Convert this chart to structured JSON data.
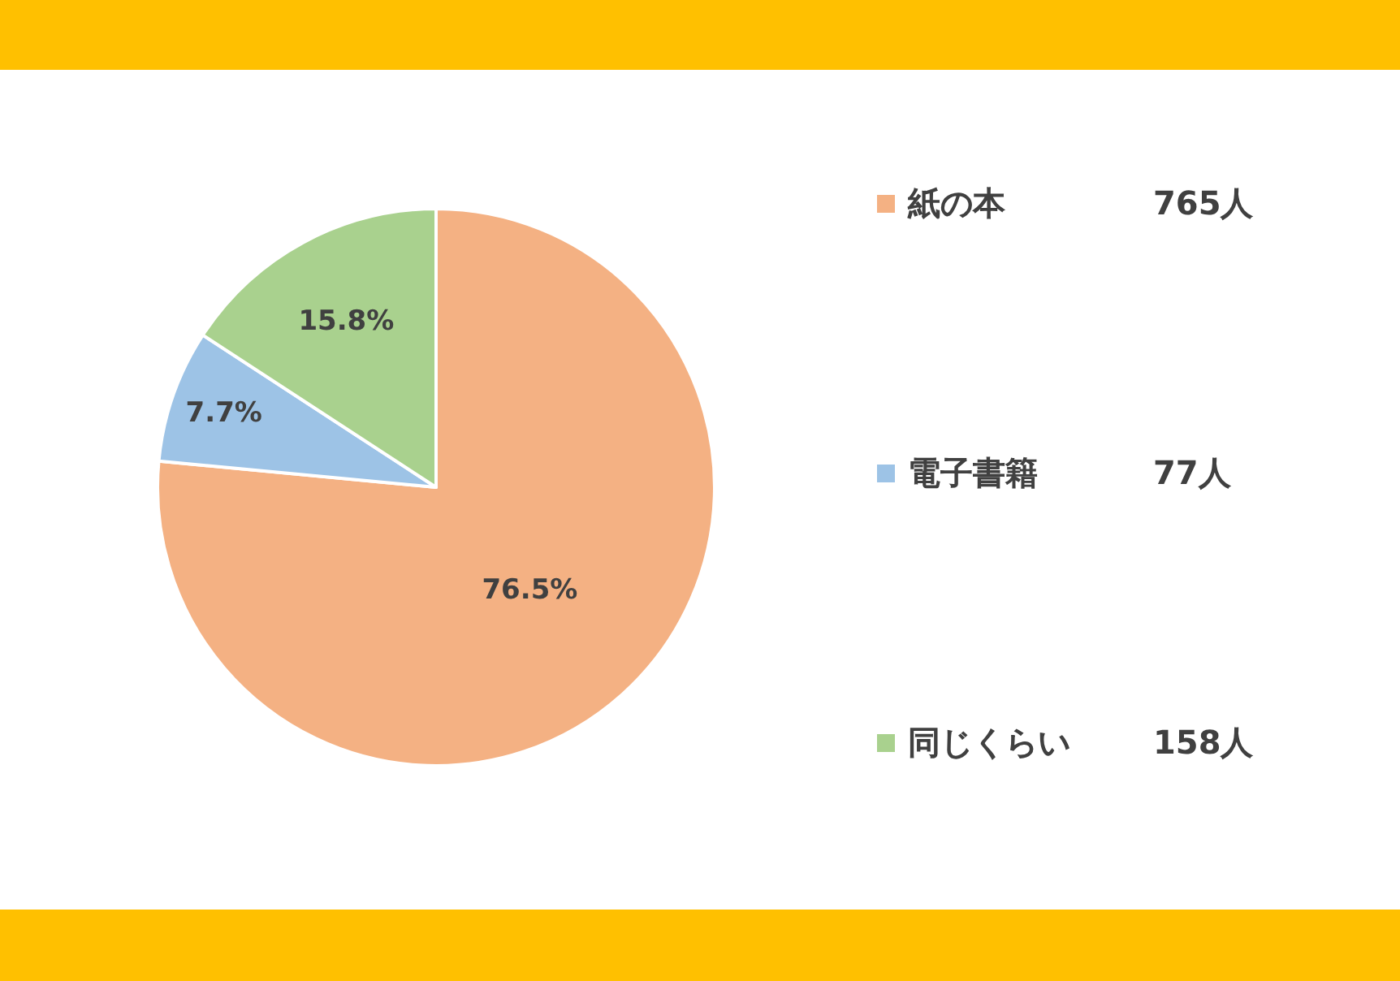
{
  "chart_data": {
    "type": "pie",
    "categories": [
      "紙の本",
      "電子書籍",
      "同じくらい"
    ],
    "values": [
      76.5,
      7.7,
      15.8
    ],
    "value_labels": [
      "76.5%",
      "7.7%",
      "15.8%"
    ],
    "colors": [
      "#f4b183",
      "#9dc3e6",
      "#a9d18e"
    ],
    "legend": "right",
    "annotations": [
      "765人",
      "77人",
      "158人"
    ]
  }
}
